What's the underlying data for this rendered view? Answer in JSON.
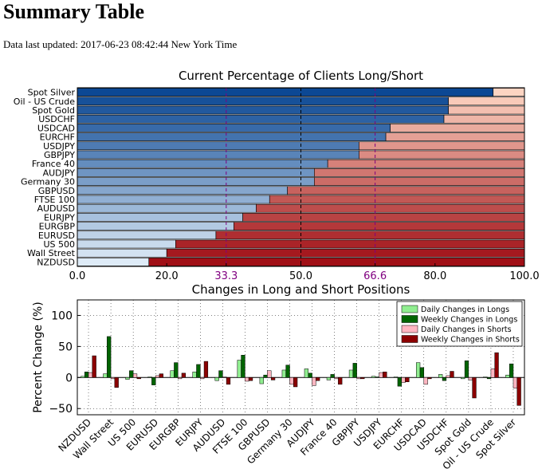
{
  "page": {
    "title": "Summary Table",
    "updated_prefix": "Data last updated:",
    "updated_value": "2017-06-23 08:42:44 New York Time"
  },
  "chart_data": [
    {
      "type": "bar",
      "orientation": "horizontal",
      "stacked": true,
      "title": "Current Percentage of Clients Long/Short",
      "categories": [
        "Spot Silver",
        "Oil - US Crude",
        "Spot Gold",
        "USDCHF",
        "USDCAD",
        "EURCHF",
        "USDJPY",
        "GBPJPY",
        "France 40",
        "AUDJPY",
        "Germany 30",
        "GBPUSD",
        "FTSE 100",
        "AUDUSD",
        "EURJPY",
        "EURGBP",
        "EURUSD",
        "US 500",
        "Wall Street",
        "NZDUSD"
      ],
      "series": [
        {
          "values": [
            93,
            83,
            83,
            82,
            70,
            69,
            63,
            63,
            56,
            53,
            53,
            47,
            43,
            40,
            37,
            35,
            31,
            22,
            20,
            16
          ]
        },
        {
          "values": [
            7,
            17,
            17,
            18,
            30,
            31,
            37,
            37,
            44,
            47,
            47,
            53,
            57,
            60,
            63,
            65,
            69,
            78,
            80,
            84
          ]
        }
      ],
      "xlim": [
        0,
        100
      ],
      "x_ticks": [
        "0.0",
        "20.0",
        "33.3",
        "50.0",
        "66.6",
        "80.0",
        "100.0"
      ],
      "reference_lines": [
        33.3,
        50,
        66.6
      ],
      "colors": {
        "long": "blues-gradient",
        "short": "reds-gradient",
        "reference": "#800080"
      }
    },
    {
      "type": "bar",
      "title": "Changes in Long and Short Positions",
      "ylabel": "Percent Change (%)",
      "ylim": [
        -60,
        125
      ],
      "y_ticks": [
        "−50",
        "0",
        "50",
        "100"
      ],
      "grid": true,
      "legend_placement": "top-right",
      "categories": [
        "NZDUSD",
        "Wall Street",
        "US 500",
        "EURUSD",
        "EURGBP",
        "EURJPY",
        "AUDUSD",
        "FTSE 100",
        "GBPUSD",
        "Germany 30",
        "AUDJPY",
        "France 40",
        "GBPJPY",
        "USDJPY",
        "EURCHF",
        "USDCAD",
        "USDCHF",
        "Spot Gold",
        "Oil - US Crude",
        "Spot Silver"
      ],
      "series": [
        {
          "name": "Daily Changes in Longs",
          "color": "#90ee90",
          "values": [
            2,
            6,
            -3,
            1,
            11,
            9,
            -5,
            28,
            -10,
            12,
            14,
            -4,
            12,
            2,
            1,
            24,
            5,
            -2,
            1,
            4
          ]
        },
        {
          "name": "Weekly Changes in Longs",
          "color": "#006400",
          "values": [
            9,
            66,
            11,
            -12,
            24,
            21,
            11,
            36,
            4,
            20,
            7,
            5,
            23,
            1,
            -14,
            16,
            -5,
            27,
            -2,
            22
          ]
        },
        {
          "name": "Daily Changes in Shorts",
          "color": "#ffb6c1",
          "values": [
            8,
            -2,
            6,
            3,
            -2,
            -2,
            1,
            -6,
            11,
            -11,
            -13,
            -2,
            -2,
            8,
            -8,
            -11,
            3,
            -4,
            14,
            -17
          ]
        },
        {
          "name": "Weekly Changes in Shorts",
          "color": "#8b0000",
          "values": [
            35,
            -16,
            -2,
            6,
            7,
            26,
            -11,
            -5,
            -4,
            -15,
            -5,
            -11,
            -2,
            9,
            -7,
            -2,
            10,
            -33,
            40,
            -45
          ]
        }
      ]
    }
  ]
}
